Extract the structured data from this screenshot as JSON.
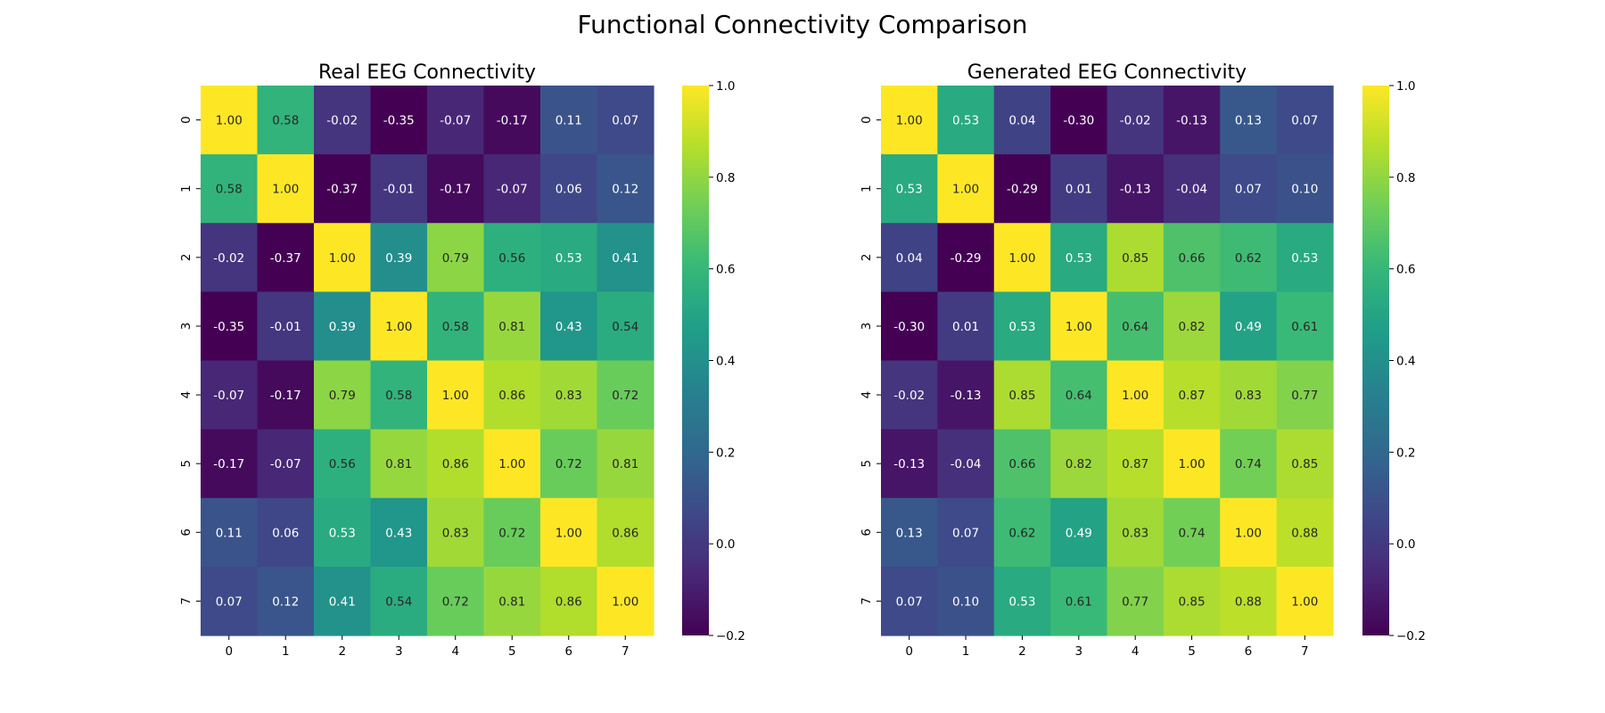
{
  "figure": {
    "title": "Functional Connectivity Comparison"
  },
  "colormap": {
    "name": "viridis",
    "stops": [
      "#440154",
      "#482878",
      "#3e4989",
      "#31688e",
      "#26828e",
      "#1f9e89",
      "#35b779",
      "#6ece58",
      "#b5de2b",
      "#fde725"
    ]
  },
  "chart_data": [
    {
      "type": "heatmap",
      "title": "Real EEG Connectivity",
      "x_ticks": [
        "0",
        "1",
        "2",
        "3",
        "4",
        "5",
        "6",
        "7"
      ],
      "y_ticks": [
        "0",
        "1",
        "2",
        "3",
        "4",
        "5",
        "6",
        "7"
      ],
      "vmin": -0.2,
      "vmax": 1.0,
      "colorbar_ticks": [
        "-0.2",
        "0.0",
        "0.2",
        "0.4",
        "0.6",
        "0.8",
        "1.0"
      ],
      "values": [
        [
          1.0,
          0.58,
          -0.02,
          -0.35,
          -0.07,
          -0.17,
          0.11,
          0.07
        ],
        [
          0.58,
          1.0,
          -0.37,
          -0.01,
          -0.17,
          -0.07,
          0.06,
          0.12
        ],
        [
          -0.02,
          -0.37,
          1.0,
          0.39,
          0.79,
          0.56,
          0.53,
          0.41
        ],
        [
          -0.35,
          -0.01,
          0.39,
          1.0,
          0.58,
          0.81,
          0.43,
          0.54
        ],
        [
          -0.07,
          -0.17,
          0.79,
          0.58,
          1.0,
          0.86,
          0.83,
          0.72
        ],
        [
          -0.17,
          -0.07,
          0.56,
          0.81,
          0.86,
          1.0,
          0.72,
          0.81
        ],
        [
          0.11,
          0.06,
          0.53,
          0.43,
          0.83,
          0.72,
          1.0,
          0.86
        ],
        [
          0.07,
          0.12,
          0.41,
          0.54,
          0.72,
          0.81,
          0.86,
          1.0
        ]
      ]
    },
    {
      "type": "heatmap",
      "title": "Generated EEG Connectivity",
      "x_ticks": [
        "0",
        "1",
        "2",
        "3",
        "4",
        "5",
        "6",
        "7"
      ],
      "y_ticks": [
        "0",
        "1",
        "2",
        "3",
        "4",
        "5",
        "6",
        "7"
      ],
      "vmin": -0.2,
      "vmax": 1.0,
      "colorbar_ticks": [
        "-0.2",
        "0.0",
        "0.2",
        "0.4",
        "0.6",
        "0.8",
        "1.0"
      ],
      "values": [
        [
          1.0,
          0.53,
          0.04,
          -0.3,
          -0.02,
          -0.13,
          0.13,
          0.07
        ],
        [
          0.53,
          1.0,
          -0.29,
          0.01,
          -0.13,
          -0.04,
          0.07,
          0.1
        ],
        [
          0.04,
          -0.29,
          1.0,
          0.53,
          0.85,
          0.66,
          0.62,
          0.53
        ],
        [
          -0.3,
          0.01,
          0.53,
          1.0,
          0.64,
          0.82,
          0.49,
          0.61
        ],
        [
          -0.02,
          -0.13,
          0.85,
          0.64,
          1.0,
          0.87,
          0.83,
          0.77
        ],
        [
          -0.13,
          -0.04,
          0.66,
          0.82,
          0.87,
          1.0,
          0.74,
          0.85
        ],
        [
          0.13,
          0.07,
          0.62,
          0.49,
          0.83,
          0.74,
          1.0,
          0.88
        ],
        [
          0.07,
          0.1,
          0.53,
          0.61,
          0.77,
          0.85,
          0.88,
          1.0
        ]
      ]
    }
  ]
}
